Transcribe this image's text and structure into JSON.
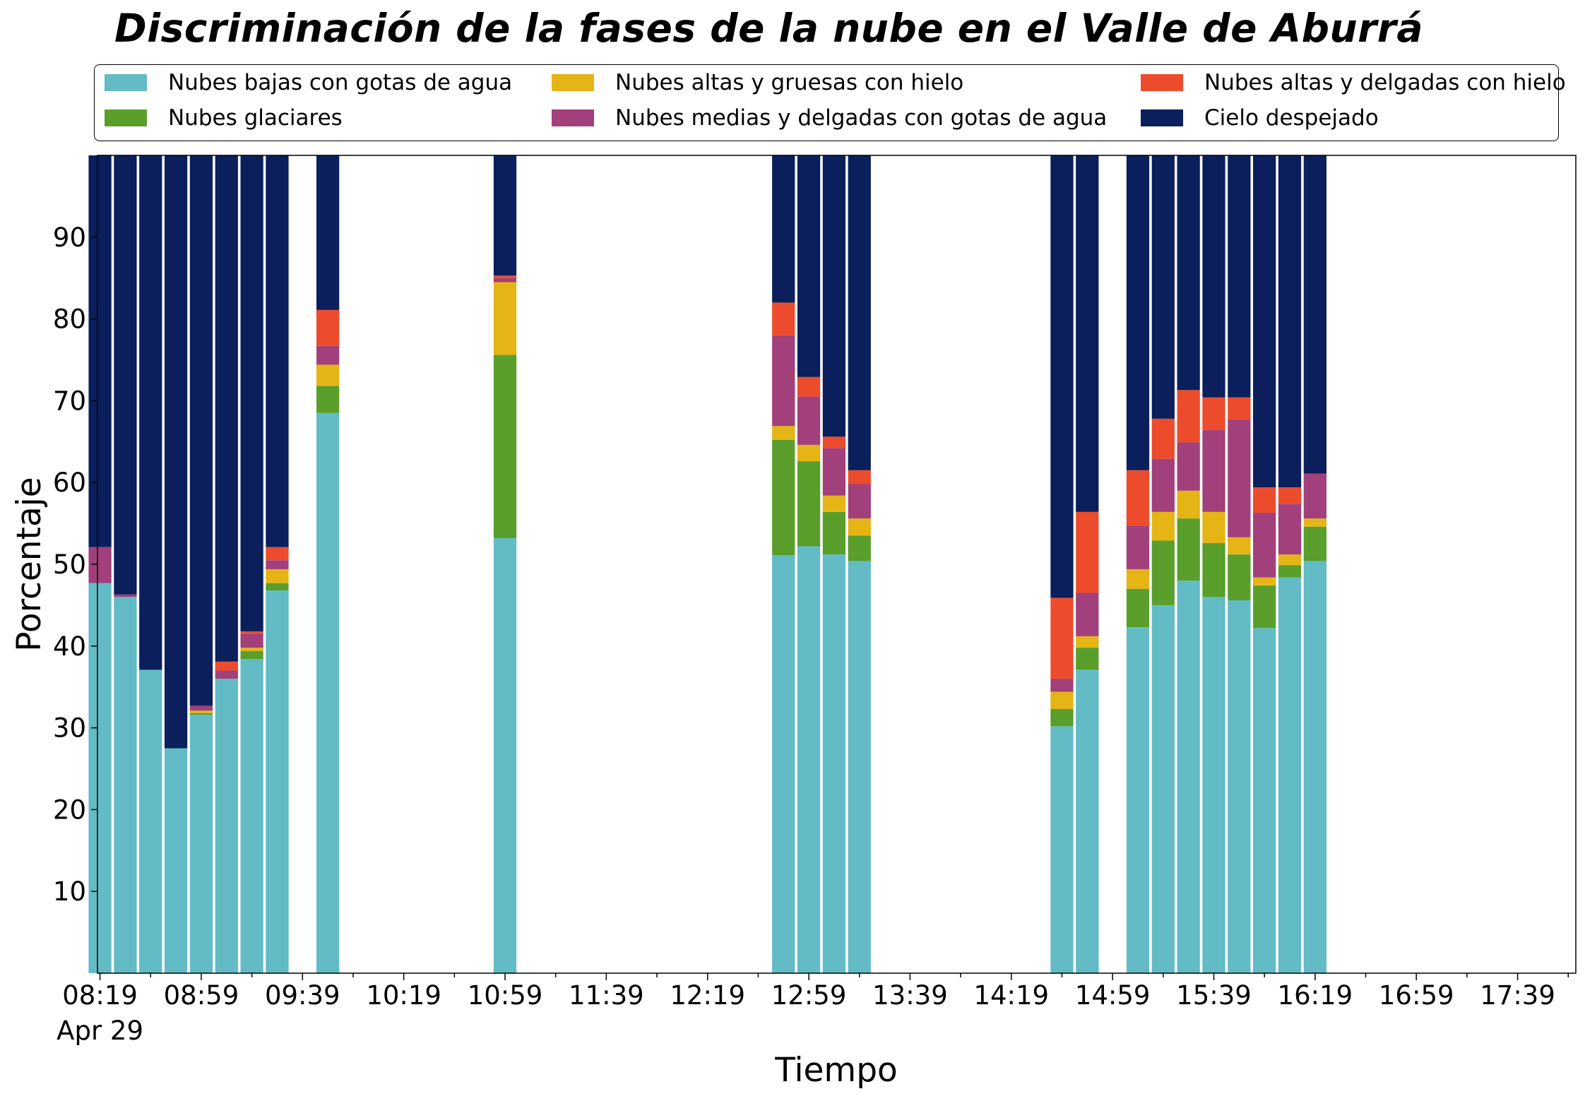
{
  "chart_data": {
    "type": "bar",
    "stacked": true,
    "title": "Discriminación de la fases de la nube en el Valle de Aburrá",
    "xlabel": "Tiempo",
    "ylabel": "Porcentaje",
    "ylim": [
      0,
      100
    ],
    "y_ticks": [
      10,
      20,
      30,
      40,
      50,
      60,
      70,
      80,
      90
    ],
    "x_tick_labels": [
      "08:19\nApr 29",
      "08:59",
      "09:39",
      "10:19",
      "10:59",
      "11:39",
      "12:19",
      "12:59",
      "13:39",
      "14:19",
      "14:59",
      "15:39",
      "16:19",
      "16:59",
      "17:39"
    ],
    "x_tick_minutes": [
      499,
      539,
      579,
      619,
      659,
      699,
      739,
      779,
      819,
      859,
      899,
      939,
      979,
      1019,
      1059
    ],
    "x_range_minutes": [
      498,
      1082
    ],
    "bar_width_minutes": 9,
    "x_minutes": [
      499,
      509,
      519,
      529,
      539,
      549,
      559,
      569,
      589,
      659,
      769,
      779,
      789,
      799,
      879,
      889,
      909,
      919,
      929,
      939,
      949,
      959,
      969,
      979
    ],
    "legend_position": "top, outside, 3 columns",
    "grid": false,
    "series": [
      {
        "name": "Nubes bajas con gotas de agua",
        "color": "#62BBC5",
        "values": [
          47.7,
          46.0,
          37.1,
          27.5,
          31.6,
          36.0,
          38.4,
          46.8,
          68.5,
          53.2,
          51.1,
          52.2,
          51.2,
          50.4,
          30.2,
          37.1,
          42.3,
          45.0,
          48.0,
          46.0,
          45.6,
          42.2,
          48.4,
          50.4
        ]
      },
      {
        "name": "Nubes glaciares",
        "color": "#5A9E2B",
        "values": [
          0,
          0,
          0,
          0,
          0.2,
          0,
          1.0,
          0.9,
          3.3,
          22.4,
          14.1,
          10.4,
          5.2,
          3.1,
          2.1,
          2.7,
          4.7,
          7.9,
          7.6,
          6.6,
          5.6,
          5.2,
          1.5,
          4.2
        ]
      },
      {
        "name": "Nubes altas y gruesas con hielo",
        "color": "#E5B415",
        "values": [
          0,
          0,
          0,
          0,
          0.3,
          0,
          0.4,
          1.7,
          2.6,
          8.9,
          1.7,
          2.0,
          2.0,
          2.1,
          2.1,
          1.4,
          2.4,
          3.5,
          3.4,
          3.8,
          2.1,
          1.0,
          1.3,
          1.0
        ]
      },
      {
        "name": "Nubes medias y delgadas con gotas de agua",
        "color": "#A1407A",
        "values": [
          4.4,
          0.3,
          0,
          0,
          0.6,
          1.0,
          1.7,
          1.1,
          2.3,
          0.5,
          11.1,
          5.9,
          5.8,
          4.2,
          1.6,
          5.3,
          5.3,
          6.5,
          5.9,
          10.0,
          14.4,
          7.9,
          6.2,
          5.5
        ]
      },
      {
        "name": "Nubes altas y delgadas con hielo",
        "color": "#EC4C2C",
        "values": [
          0,
          0,
          0,
          0,
          0,
          1.1,
          0.3,
          1.6,
          4.4,
          0.3,
          4.0,
          2.4,
          1.4,
          1.7,
          9.9,
          9.9,
          6.8,
          4.9,
          6.4,
          4.0,
          2.7,
          3.1,
          2.0,
          0
        ]
      },
      {
        "name": "Cielo despejado",
        "color": "#0A1F5C",
        "values": [
          47.9,
          53.7,
          62.9,
          72.5,
          67.3,
          61.9,
          58.2,
          47.9,
          18.9,
          14.7,
          18.0,
          27.1,
          34.4,
          38.5,
          54.1,
          43.6,
          38.5,
          32.2,
          28.7,
          29.6,
          29.6,
          40.6,
          40.6,
          38.9
        ]
      }
    ]
  }
}
